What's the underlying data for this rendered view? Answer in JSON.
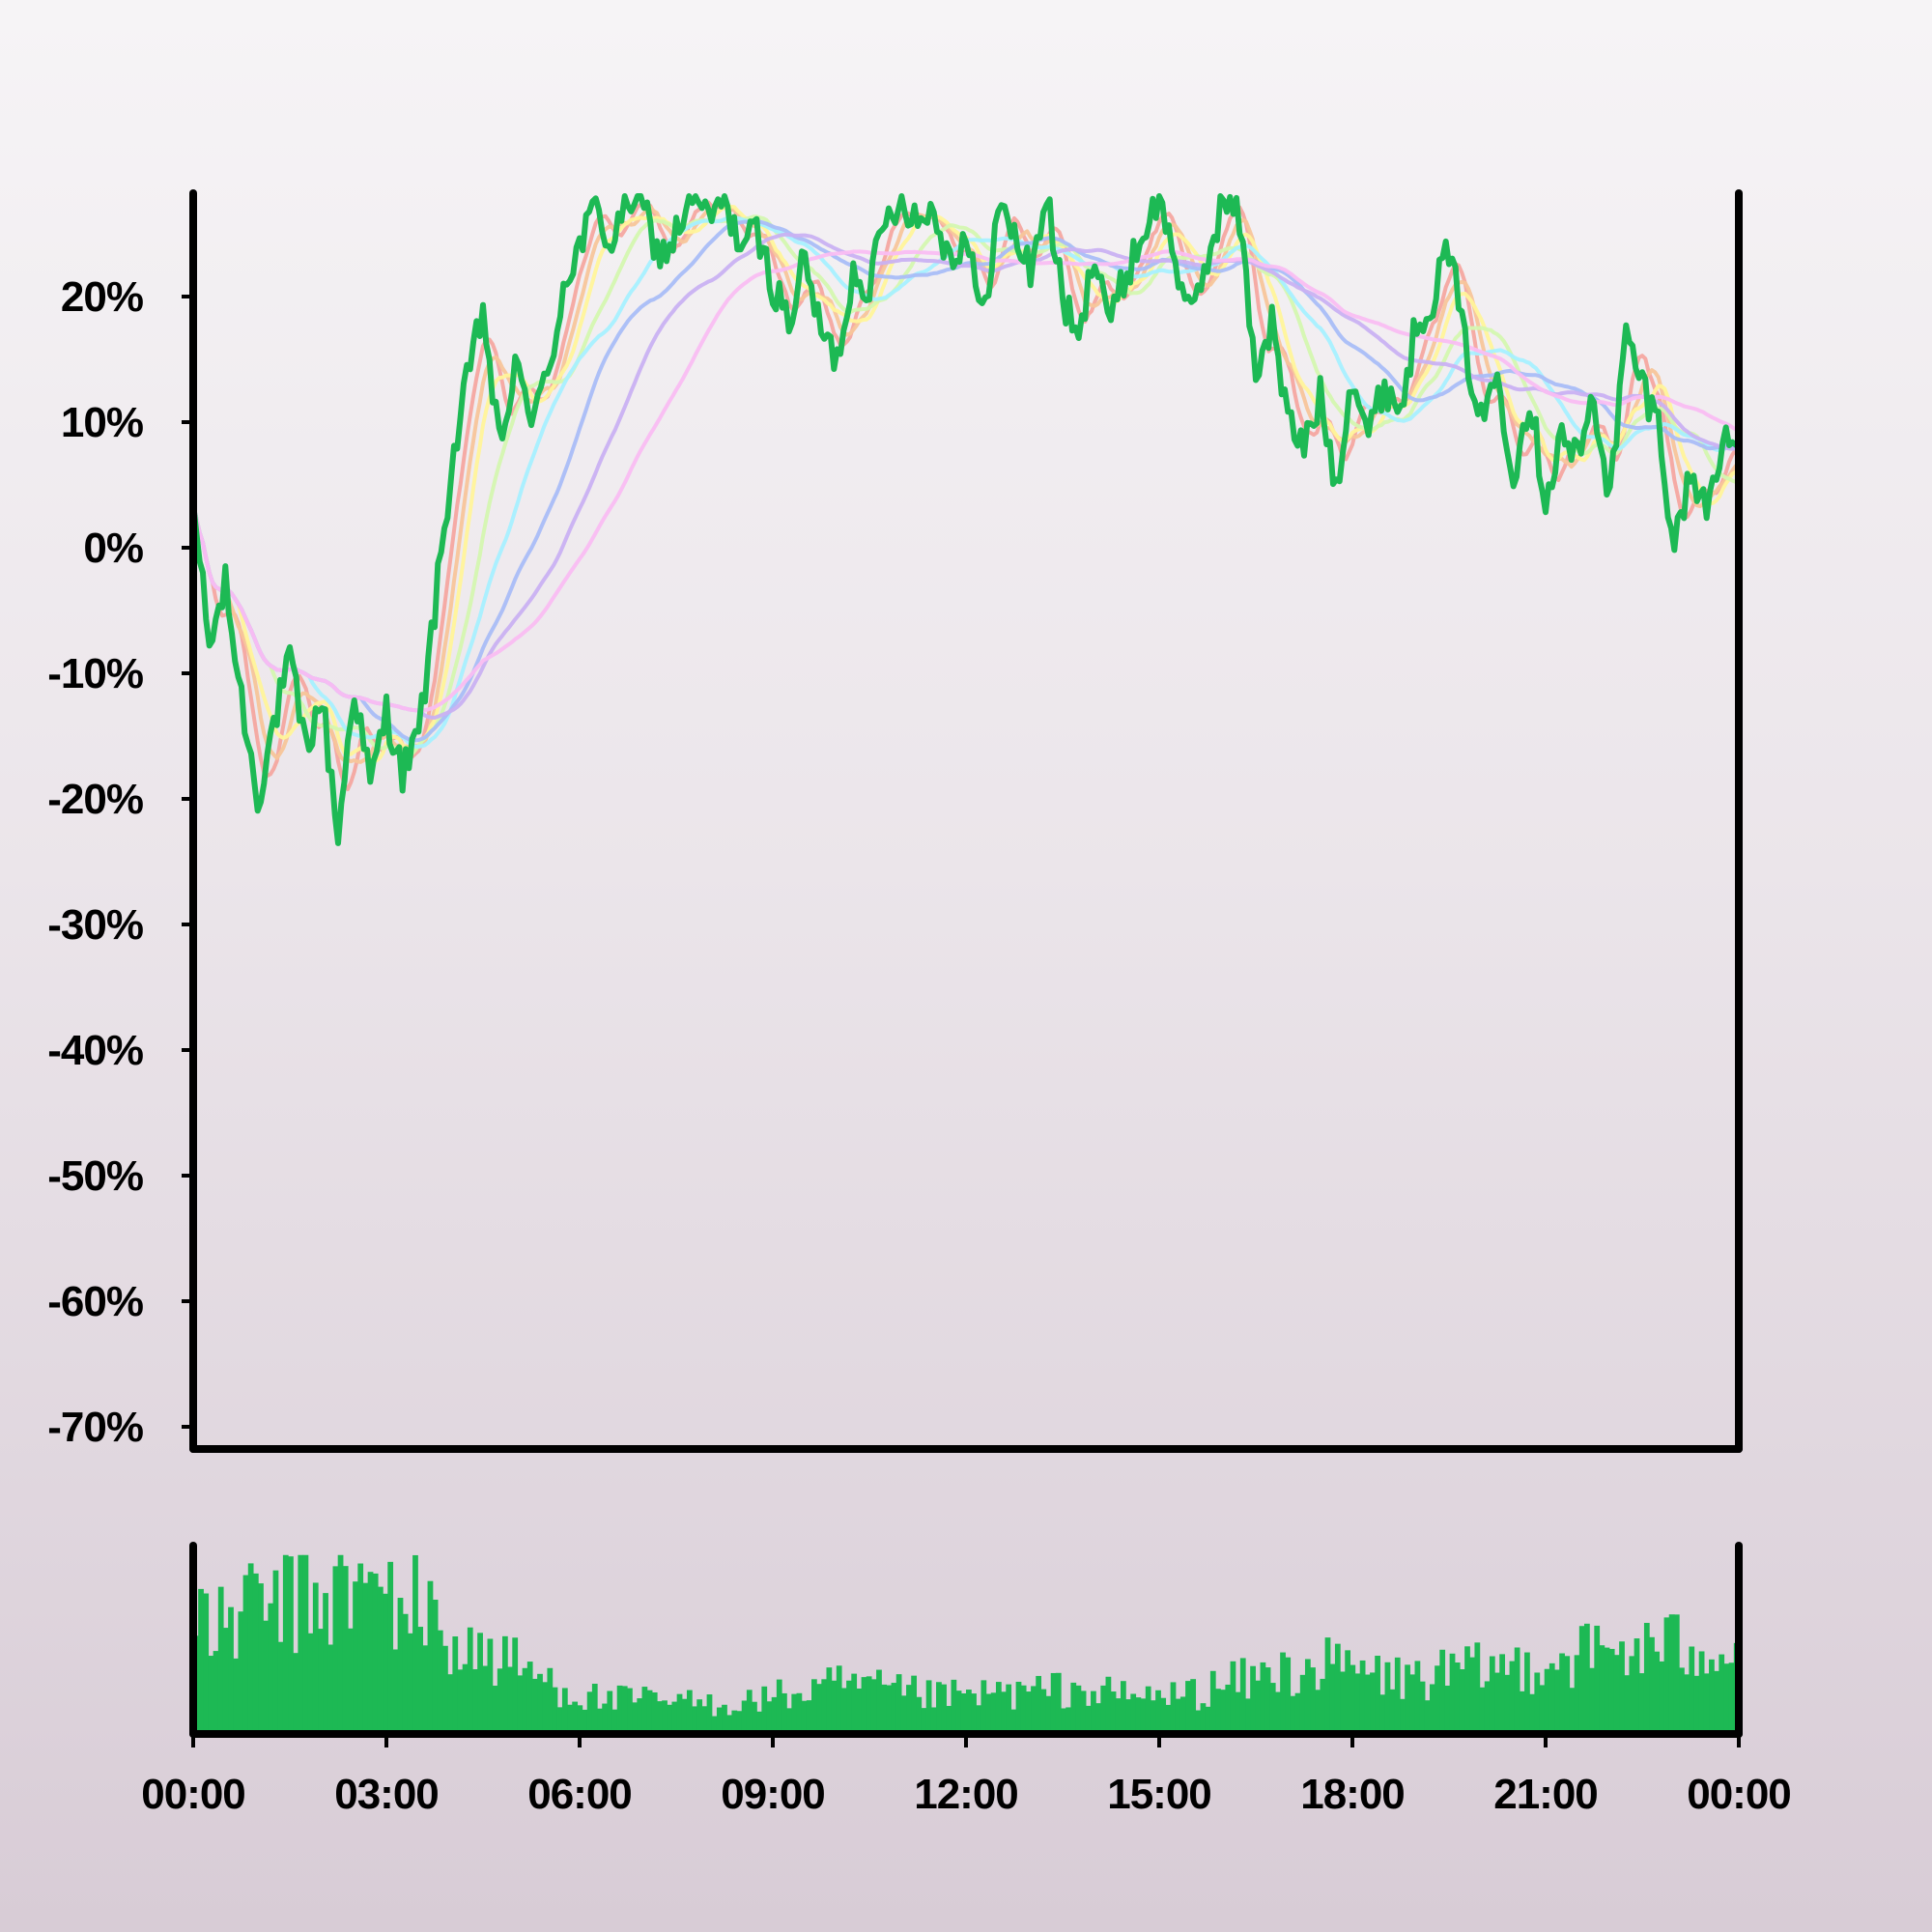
{
  "chart_data": {
    "type": "line",
    "title": "",
    "xlabel": "",
    "ylabel": "",
    "x_tick_labels": [
      "00:00",
      "03:00",
      "06:00",
      "09:00",
      "12:00",
      "15:00",
      "18:00",
      "21:00",
      "00:00"
    ],
    "x_range_hours": [
      0,
      24
    ],
    "y_tick_labels": [
      "20%",
      "10%",
      "0%",
      "-10%",
      "-20%",
      "-30%",
      "-40%",
      "-50%",
      "-60%",
      "-70%"
    ],
    "y_tick_values": [
      20,
      10,
      0,
      -10,
      -20,
      -30,
      -40,
      -50,
      -60,
      -70
    ],
    "ylim": [
      -71,
      28
    ],
    "grid": false,
    "legend": "none",
    "price_series": {
      "color": "#1db954",
      "hours": [
        0,
        0.25,
        0.5,
        0.75,
        1.0,
        1.25,
        1.5,
        1.75,
        2.0,
        2.25,
        2.5,
        2.75,
        3.0,
        3.25,
        3.5,
        3.75,
        4.0,
        4.25,
        4.5,
        4.75,
        5.0,
        5.25,
        5.5,
        5.75,
        6.0,
        6.25,
        6.5,
        6.75,
        7.0,
        7.25,
        7.5,
        7.75,
        8.0,
        8.25,
        8.5,
        8.75,
        9.0,
        9.25,
        9.5,
        9.75,
        10.0,
        10.25,
        10.5,
        10.75,
        11.0,
        11.25,
        11.5,
        11.75,
        12.0,
        12.25,
        12.5,
        12.75,
        13.0,
        13.25,
        13.5,
        13.75,
        14.0,
        14.25,
        14.5,
        14.75,
        15.0,
        15.25,
        15.5,
        15.75,
        16.0,
        16.25,
        16.5,
        16.75,
        17.0,
        17.25,
        17.5,
        17.75,
        18.0,
        18.25,
        18.5,
        18.75,
        19.0,
        19.25,
        19.5,
        19.75,
        20.0,
        20.25,
        20.5,
        20.75,
        21.0,
        21.25,
        21.5,
        21.75,
        22.0,
        22.25,
        22.5,
        22.75,
        23.0,
        23.25,
        23.5,
        23.75,
        24.0
      ],
      "values": [
        3.5,
        -8,
        -3,
        -12,
        -20,
        -14,
        -9,
        -16,
        -12,
        -23,
        -11,
        -19,
        -13,
        -18,
        -15,
        -5,
        6,
        13,
        19,
        8,
        14,
        11,
        13,
        21,
        24,
        27,
        24,
        28,
        27,
        23,
        25,
        28,
        26,
        28,
        24,
        25,
        21,
        18,
        23,
        17,
        15,
        22,
        21,
        26,
        28,
        26,
        27,
        23,
        25,
        18,
        27,
        25,
        22,
        28,
        20,
        16,
        24,
        18,
        22,
        25,
        28,
        23,
        18,
        23,
        28,
        26,
        14,
        18,
        10,
        8,
        12,
        5,
        14,
        9,
        13,
        11,
        18,
        20,
        24,
        16,
        10,
        14,
        6,
        12,
        4,
        9,
        7,
        12,
        4,
        17,
        13,
        10,
        0,
        6,
        3,
        9,
        8
      ]
    },
    "moving_averages": [
      {
        "color": "#f4a6a0"
      },
      {
        "color": "#f7c59a"
      },
      {
        "color": "#fff49a"
      },
      {
        "color": "#d4f7b0"
      },
      {
        "color": "#a6f0ff"
      },
      {
        "color": "#a9bdf7"
      },
      {
        "color": "#c9b1f2"
      },
      {
        "color": "#f9bdf2"
      }
    ],
    "volume": {
      "color": "#1db954",
      "hours": [
        0,
        0.5,
        1.0,
        1.5,
        2.0,
        2.5,
        3.0,
        3.5,
        4.0,
        4.5,
        5.0,
        5.5,
        6.0,
        6.5,
        7.0,
        7.5,
        8.0,
        8.5,
        9.0,
        9.5,
        10.0,
        10.5,
        11.0,
        11.5,
        12.0,
        12.5,
        13.0,
        13.5,
        14.0,
        14.5,
        15.0,
        15.5,
        16.0,
        16.5,
        17.0,
        17.5,
        18.0,
        18.5,
        19.0,
        19.5,
        20.0,
        20.5,
        21.0,
        21.5,
        22.0,
        22.5,
        23.0,
        23.5,
        24.0
      ],
      "relative_level": [
        0.52,
        0.6,
        0.68,
        0.72,
        0.74,
        0.76,
        0.74,
        0.66,
        0.48,
        0.42,
        0.36,
        0.28,
        0.2,
        0.18,
        0.18,
        0.17,
        0.16,
        0.17,
        0.2,
        0.22,
        0.26,
        0.24,
        0.22,
        0.2,
        0.2,
        0.22,
        0.22,
        0.24,
        0.22,
        0.2,
        0.2,
        0.22,
        0.26,
        0.3,
        0.34,
        0.36,
        0.34,
        0.3,
        0.3,
        0.32,
        0.34,
        0.36,
        0.4,
        0.42,
        0.44,
        0.45,
        0.46,
        0.5,
        0.44
      ]
    }
  }
}
